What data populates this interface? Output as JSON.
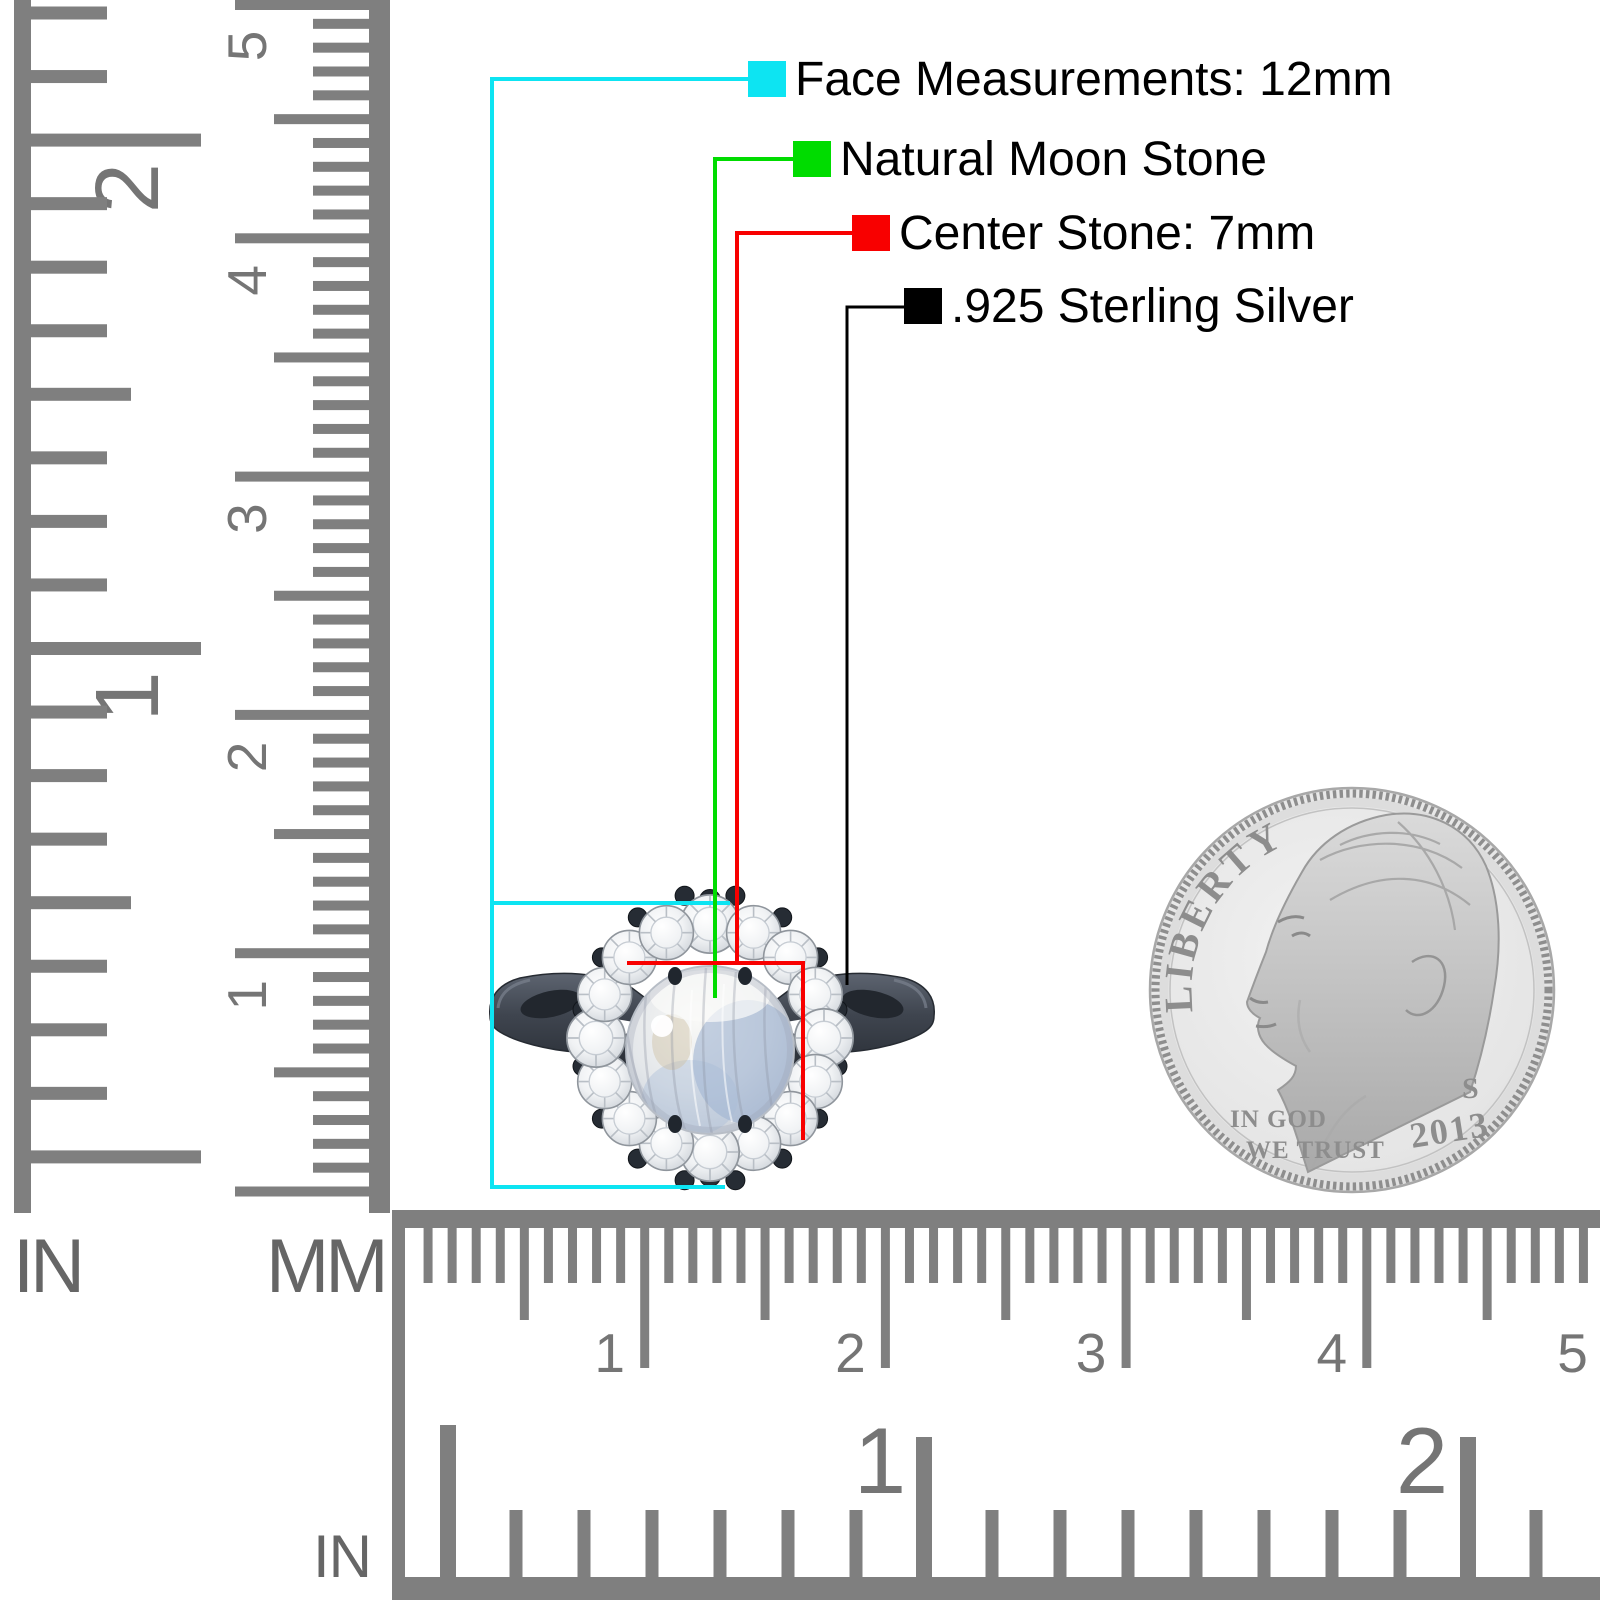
{
  "legend": {
    "items": [
      {
        "label": "Face Measurements: 12mm",
        "color": "#0de4f2"
      },
      {
        "label": "Natural Moon Stone",
        "color": "#00dc00"
      },
      {
        "label": "Center Stone: 7mm",
        "color": "#f80000"
      },
      {
        "label": ".925 Sterling Silver",
        "color": "#000000"
      }
    ]
  },
  "rulers": {
    "unit_labels": {
      "left_vertical": "IN",
      "right_vertical": "MM",
      "bottom_horizontal": "IN"
    },
    "left_vertical_inch_numbers": [
      "2",
      "1"
    ],
    "right_vertical_cm_numbers": [
      "5",
      "4",
      "3",
      "2",
      "1"
    ],
    "bottom_cm_numbers": [
      "1",
      "2",
      "3",
      "4",
      "5"
    ],
    "bottom_inch_numbers": [
      "1",
      "2"
    ]
  },
  "coin": {
    "liberty": "LIBERTY",
    "motto_line1": "IN GOD",
    "motto_line2": "WE TRUST",
    "year": "2013",
    "mint_mark": "S"
  },
  "palette": {
    "ruler_gray": "#7f7f7f",
    "ruler_number_gray": "#757575",
    "band_dark": "#3d434d",
    "moonstone_blue": "#8fa8cc",
    "coin_silver": "#e9e9e9"
  }
}
